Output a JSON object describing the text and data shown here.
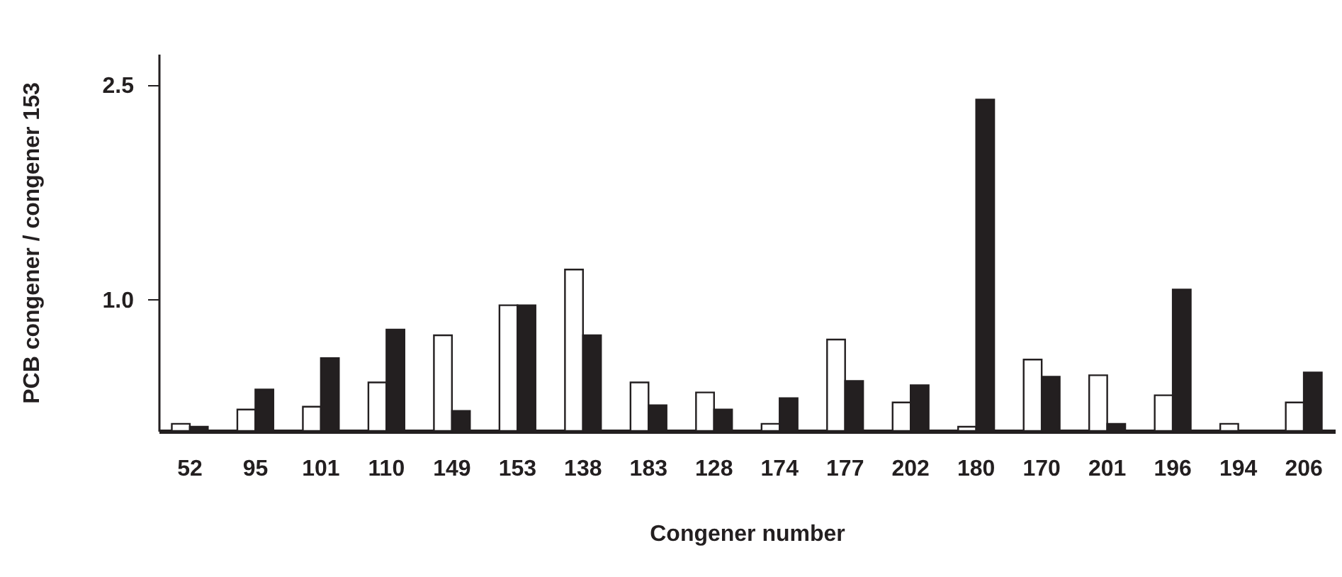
{
  "chart_data": {
    "type": "bar",
    "xlabel": "Congener number",
    "ylabel": "PCB congener / congener 153",
    "categories": [
      "52",
      "95",
      "101",
      "110",
      "149",
      "153",
      "138",
      "183",
      "128",
      "174",
      "177",
      "202",
      "180",
      "170",
      "201",
      "196",
      "194",
      "206"
    ],
    "series": [
      {
        "color": "#ffffff",
        "values": [
          0.13,
          0.23,
          0.25,
          0.42,
          0.75,
          0.96,
          1.21,
          0.42,
          0.35,
          0.13,
          0.72,
          0.28,
          0.11,
          0.58,
          0.47,
          0.33,
          0.13,
          0.28
        ]
      },
      {
        "color": "#231f20",
        "values": [
          0.11,
          0.37,
          0.59,
          0.79,
          0.22,
          0.96,
          0.75,
          0.26,
          0.23,
          0.31,
          0.43,
          0.4,
          2.4,
          0.46,
          0.13,
          1.07,
          null,
          0.49
        ]
      }
    ],
    "ylim": [
      0.08,
      2.72
    ],
    "yticks": [
      {
        "value": 1,
        "label": "1.0"
      },
      {
        "value": 2.5,
        "label": "2.5"
      }
    ],
    "grid": false,
    "legend": false
  }
}
